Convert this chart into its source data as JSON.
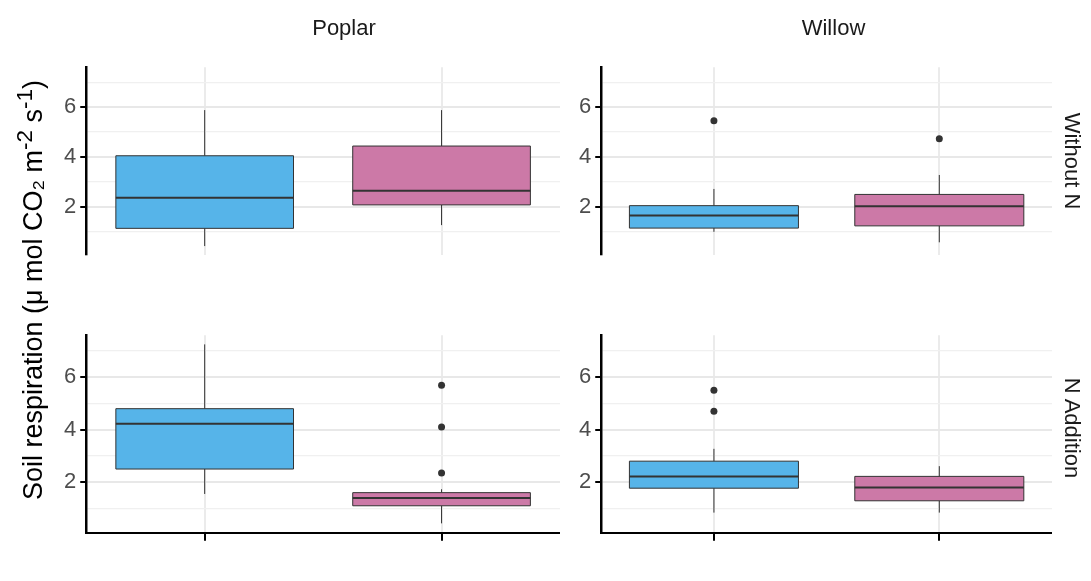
{
  "chart_data": [
    {
      "type": "box",
      "title": "Poplar",
      "ylabel": "Soil respiration (μ mol CO₂ m$^{-2}$ s$^{-1}$)",
      "categories": [
        null,
        null
      ],
      "colors": [
        "#56b4e9",
        "#cc79a7"
      ],
      "ylim": [
        0.08,
        7.6
      ],
      "yticks": [
        {
          "value": 1,
          "label": null
        },
        2,
        {
          "value": 3,
          "label": null
        },
        4,
        {
          "value": 5,
          "label": null
        },
        6,
        {
          "value": 7,
          "label": null
        }
      ],
      "grid": true,
      "tick_labels": "y",
      "boxes": [
        {
          "low": 0.43,
          "q1": 1.14,
          "median": 2.37,
          "q3": 4.05,
          "high": 5.88
        },
        {
          "low": 1.27,
          "q1": 2.08,
          "median": 2.65,
          "q3": 4.44,
          "high": 5.88
        }
      ]
    },
    {
      "type": "box",
      "title": "Willow",
      "y2label": "Without N",
      "categories": [
        null,
        null
      ],
      "colors": [
        "#56b4e9",
        "#cc79a7"
      ],
      "ylim": [
        0.08,
        7.6
      ],
      "yticks": [
        {
          "value": 1,
          "label": null
        },
        2,
        {
          "value": 3,
          "label": null
        },
        4,
        {
          "value": 5,
          "label": null
        },
        6,
        {
          "value": 7,
          "label": null
        }
      ],
      "grid": true,
      "tick_labels": "y",
      "boxes": [
        {
          "low": 1.0,
          "q1": 1.15,
          "median": 1.66,
          "q3": 2.05,
          "high": 2.72,
          "outliers": [
            5.45
          ]
        },
        {
          "low": 0.58,
          "q1": 1.24,
          "median": 2.03,
          "q3": 2.5,
          "high": 3.28,
          "outliers": [
            4.73
          ]
        }
      ]
    },
    {
      "type": "box",
      "categories": [
        null,
        null
      ],
      "colors": [
        "#56b4e9",
        "#cc79a7"
      ],
      "ylim": [
        0.07,
        7.6
      ],
      "yticks": [
        {
          "value": 1,
          "label": null
        },
        2,
        {
          "value": 3,
          "label": null
        },
        4,
        {
          "value": 5,
          "label": null
        },
        6,
        {
          "value": 7,
          "label": null
        }
      ],
      "grid": true,
      "tick_labels": "y",
      "boxes": [
        {
          "low": 1.55,
          "q1": 2.5,
          "median": 4.23,
          "q3": 4.8,
          "high": 7.25
        },
        {
          "low": 0.43,
          "q1": 1.1,
          "median": 1.4,
          "q3": 1.6,
          "high": 1.73,
          "outliers": [
            5.69,
            4.1,
            2.35
          ]
        }
      ]
    },
    {
      "type": "box",
      "y2label": "N Addition",
      "categories": [
        null,
        null
      ],
      "colors": [
        "#56b4e9",
        "#cc79a7"
      ],
      "ylim": [
        0.07,
        7.6
      ],
      "yticks": [
        {
          "value": 1,
          "label": null
        },
        2,
        {
          "value": 3,
          "label": null
        },
        4,
        {
          "value": 5,
          "label": null
        },
        6,
        {
          "value": 7,
          "label": null
        }
      ],
      "grid": true,
      "tick_labels": "y",
      "boxes": [
        {
          "low": 0.84,
          "q1": 1.77,
          "median": 2.22,
          "q3": 2.8,
          "high": 3.27,
          "outliers": [
            5.5,
            4.7
          ]
        },
        {
          "low": 0.84,
          "q1": 1.29,
          "median": 1.8,
          "q3": 2.22,
          "high": 2.61
        }
      ]
    }
  ]
}
